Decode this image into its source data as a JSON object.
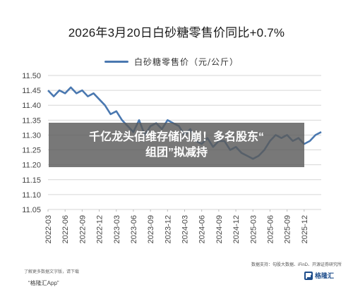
{
  "chart_data": {
    "type": "line",
    "title": "2026年3月20日白砂糖零售价同比+0.7%",
    "series": [
      {
        "name": "白砂糖零售价（元/公斤）",
        "color": "#4a78b0",
        "x": [
          "2022-03",
          "2022-04",
          "2022-05",
          "2022-06",
          "2022-07",
          "2022-08",
          "2022-09",
          "2022-10",
          "2022-11",
          "2022-12",
          "2023-01",
          "2023-02",
          "2023-03",
          "2023-04",
          "2023-05",
          "2023-06",
          "2023-07",
          "2023-08",
          "2023-09",
          "2023-10",
          "2023-11",
          "2023-12",
          "2024-01",
          "2024-02",
          "2024-03",
          "2024-04",
          "2024-05",
          "2024-06",
          "2024-07",
          "2024-08",
          "2024-09",
          "2024-10",
          "2024-11",
          "2024-12",
          "2025-01",
          "2025-02",
          "2025-03",
          "2025-04",
          "2025-05",
          "2025-06",
          "2025-07",
          "2025-08",
          "2025-09",
          "2025-10",
          "2025-11",
          "2025-12",
          "2026-01",
          "2026-02",
          "2026-03"
        ],
        "values": [
          11.45,
          11.43,
          11.45,
          11.44,
          11.46,
          11.44,
          11.45,
          11.43,
          11.44,
          11.42,
          11.4,
          11.37,
          11.38,
          11.35,
          11.33,
          11.31,
          11.35,
          11.3,
          11.33,
          11.34,
          11.32,
          11.35,
          11.34,
          11.33,
          11.3,
          11.32,
          11.28,
          11.27,
          11.29,
          11.26,
          11.28,
          11.28,
          11.25,
          11.26,
          11.24,
          11.23,
          11.22,
          11.23,
          11.25,
          11.28,
          11.3,
          11.29,
          11.3,
          11.28,
          11.29,
          11.27,
          11.28,
          11.3,
          11.31
        ]
      }
    ],
    "ylim": [
      11.05,
      11.5
    ],
    "yticks": [
      "11.50",
      "11.45",
      "11.40",
      "11.35",
      "11.30",
      "11.25",
      "11.20",
      "11.15",
      "11.10",
      "11.05"
    ],
    "xticks": [
      "2022-03",
      "2022-06",
      "2022-09",
      "2022-12",
      "2023-03",
      "2023-06",
      "2023-09",
      "2023-12",
      "2024-03",
      "2024-06",
      "2024-09",
      "2024-12",
      "2025-03",
      "2025-06",
      "2025-09",
      "2025-12"
    ],
    "grid": true,
    "legend_position": "top-left"
  },
  "overlay": {
    "line1": "千亿龙头佰维存储闪崩！多名股东“",
    "line2": "组团”拟减持"
  },
  "footer": {
    "disclaimer1": "了解更多数据文字版，请下载",
    "disclaimer2": "",
    "app_name": "“格隆汇App”",
    "source": "数据支持：勾股大数据、iFinD、开源证券研究所",
    "logo_text": "格隆汇"
  }
}
